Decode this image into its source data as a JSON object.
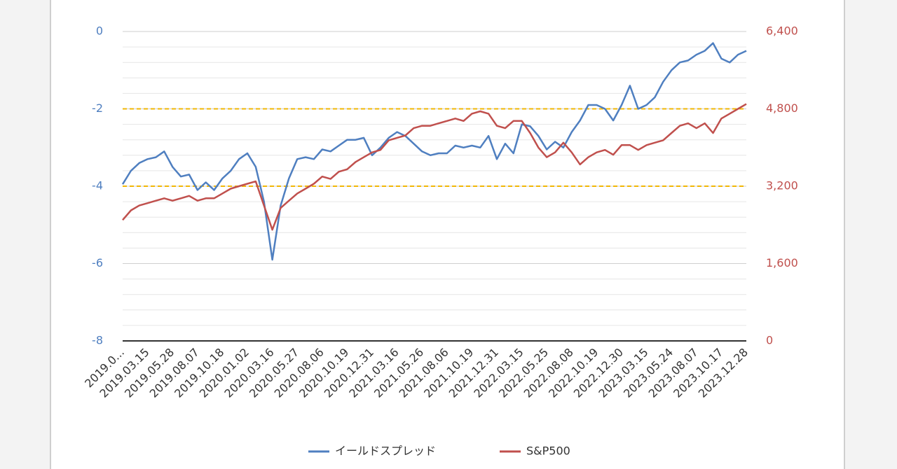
{
  "chart_data": {
    "type": "line",
    "categories": [
      "2019.0...",
      null,
      null,
      "2019.03.15",
      null,
      null,
      "2019.05.28",
      null,
      null,
      "2019.08.07",
      null,
      null,
      "2019.10.18",
      null,
      null,
      "2020.01.02",
      null,
      null,
      "2020.03.16",
      null,
      null,
      "2020.05.27",
      null,
      null,
      "2020.08.06",
      null,
      null,
      "2020.10.19",
      null,
      null,
      "2020.12.31",
      null,
      null,
      "2021.03.16",
      null,
      null,
      "2021.05.26",
      null,
      null,
      "2021.08.06",
      null,
      null,
      "2021.10.19",
      null,
      null,
      "2021.12.31",
      null,
      null,
      "2022.03.15",
      null,
      null,
      "2022.05.25",
      null,
      null,
      "2022.08.08",
      null,
      null,
      "2022.10.19",
      null,
      null,
      "2022.12.30",
      null,
      null,
      "2023.03.15",
      null,
      null,
      "2023.05.24",
      null,
      null,
      "2023.08.07",
      null,
      null,
      "2023.10.17",
      null,
      null,
      "2023.12.28"
    ],
    "series": [
      {
        "name": "イールドスプレッド",
        "color": "#4f7fc0",
        "values": [
          -3.95,
          -3.6,
          -3.4,
          -3.3,
          -3.25,
          -3.1,
          -3.5,
          -3.75,
          -3.7,
          -4.1,
          -3.9,
          -4.1,
          -3.8,
          -3.6,
          -3.3,
          -3.15,
          -3.5,
          -4.4,
          -5.9,
          -4.5,
          -3.8,
          -3.3,
          -3.25,
          -3.3,
          -3.05,
          -3.1,
          -2.95,
          -2.8,
          -2.8,
          -2.75,
          -3.2,
          -3.0,
          -2.75,
          -2.6,
          -2.7,
          -2.9,
          -3.1,
          -3.2,
          -3.15,
          -3.15,
          -2.95,
          -3.0,
          -2.95,
          -3.0,
          -2.7,
          -3.3,
          -2.9,
          -3.15,
          -2.4,
          -2.45,
          -2.7,
          -3.05,
          -2.85,
          -3.0,
          -2.6,
          -2.3,
          -1.9,
          -1.9,
          -2.0,
          -2.3,
          -1.9,
          -1.4,
          -2.0,
          -1.9,
          -1.7,
          -1.3,
          -1.0,
          -0.8,
          -0.75,
          -0.6,
          -0.5,
          -0.3,
          -0.7,
          -0.8,
          -0.6,
          -0.5
        ]
      },
      {
        "name": "S&P500",
        "color": "#c0504d",
        "axis": "y2",
        "values": [
          2500,
          2700,
          2800,
          2850,
          2900,
          2950,
          2900,
          2950,
          3000,
          2900,
          2950,
          2950,
          3050,
          3150,
          3200,
          3250,
          3300,
          2800,
          2300,
          2750,
          2900,
          3050,
          3150,
          3250,
          3400,
          3350,
          3500,
          3550,
          3700,
          3800,
          3900,
          3950,
          4150,
          4200,
          4250,
          4400,
          4450,
          4450,
          4500,
          4550,
          4600,
          4550,
          4700,
          4750,
          4700,
          4450,
          4400,
          4550,
          4550,
          4300,
          4000,
          3800,
          3900,
          4100,
          3900,
          3650,
          3800,
          3900,
          3950,
          3850,
          4050,
          4050,
          3950,
          4050,
          4100,
          4150,
          4300,
          4450,
          4500,
          4400,
          4500,
          4300,
          4600,
          4700,
          4800,
          4900
        ]
      }
    ],
    "ylim": [
      -8,
      0
    ],
    "yticks": [
      -8,
      -6,
      -4,
      -2,
      0
    ],
    "y2lim": [
      0,
      6400
    ],
    "y2ticks": [
      0,
      {
        "value": 1600,
        "label": "1,600"
      },
      {
        "value": 3200,
        "label": "3,200"
      },
      {
        "value": 4800,
        "label": "4,800"
      },
      {
        "value": 6400,
        "label": "6,400"
      }
    ],
    "grid": true,
    "minor_gridlines_per_interval": 4,
    "reference_lines": [
      {
        "value": -2,
        "color": "#f2b705"
      },
      {
        "value": -4,
        "color": "#f2b705"
      }
    ],
    "legend": "bottom"
  }
}
